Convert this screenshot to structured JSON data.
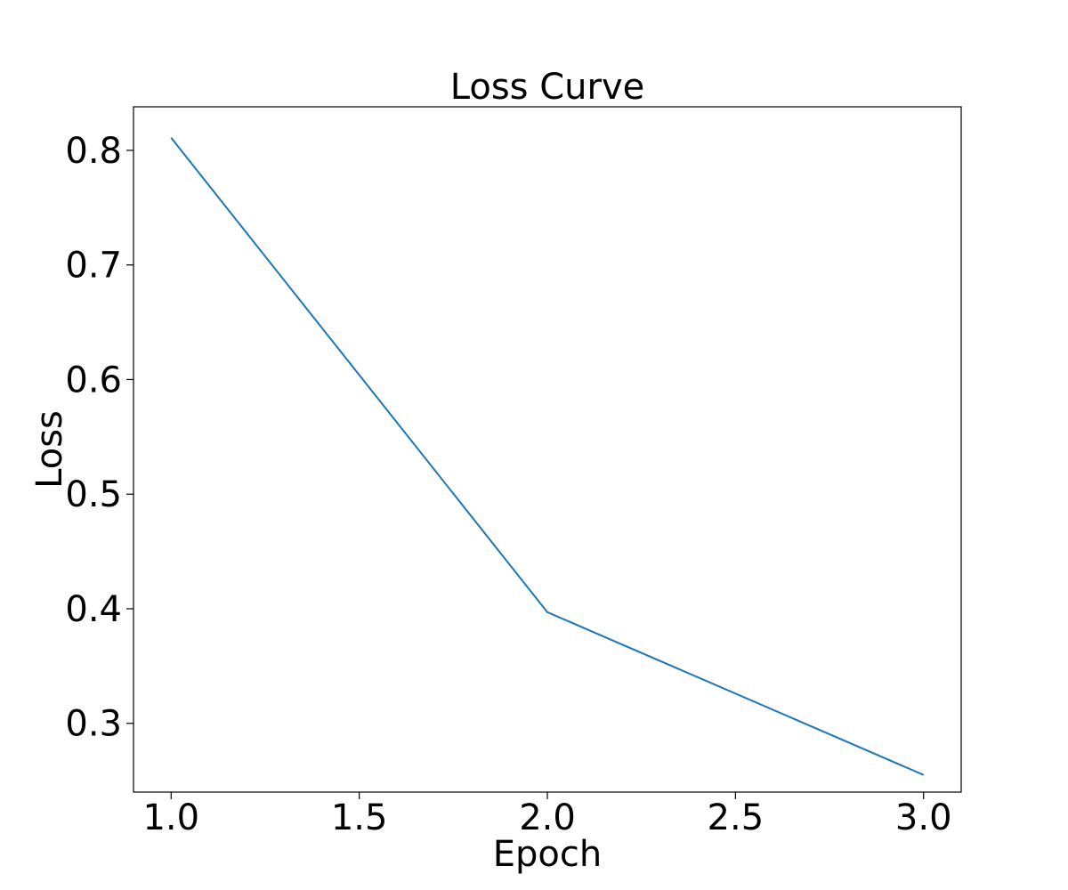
{
  "chart_data": {
    "type": "line",
    "title": "Loss Curve",
    "xlabel": "Epoch",
    "ylabel": "Loss",
    "xlim": [
      0.9,
      3.1
    ],
    "ylim": [
      0.24,
      0.838
    ],
    "xticks": [
      1.0,
      1.5,
      2.0,
      2.5,
      3.0
    ],
    "xtick_labels": [
      "1.0",
      "1.5",
      "2.0",
      "2.5",
      "3.0"
    ],
    "yticks": [
      0.3,
      0.4,
      0.5,
      0.6,
      0.7,
      0.8
    ],
    "ytick_labels": [
      "0.3",
      "0.4",
      "0.5",
      "0.6",
      "0.7",
      "0.8"
    ],
    "grid": false,
    "series": [
      {
        "color": "#1f77b4",
        "x": [
          1.0,
          2.0,
          3.0
        ],
        "y": [
          0.811,
          0.397,
          0.255
        ]
      }
    ]
  }
}
